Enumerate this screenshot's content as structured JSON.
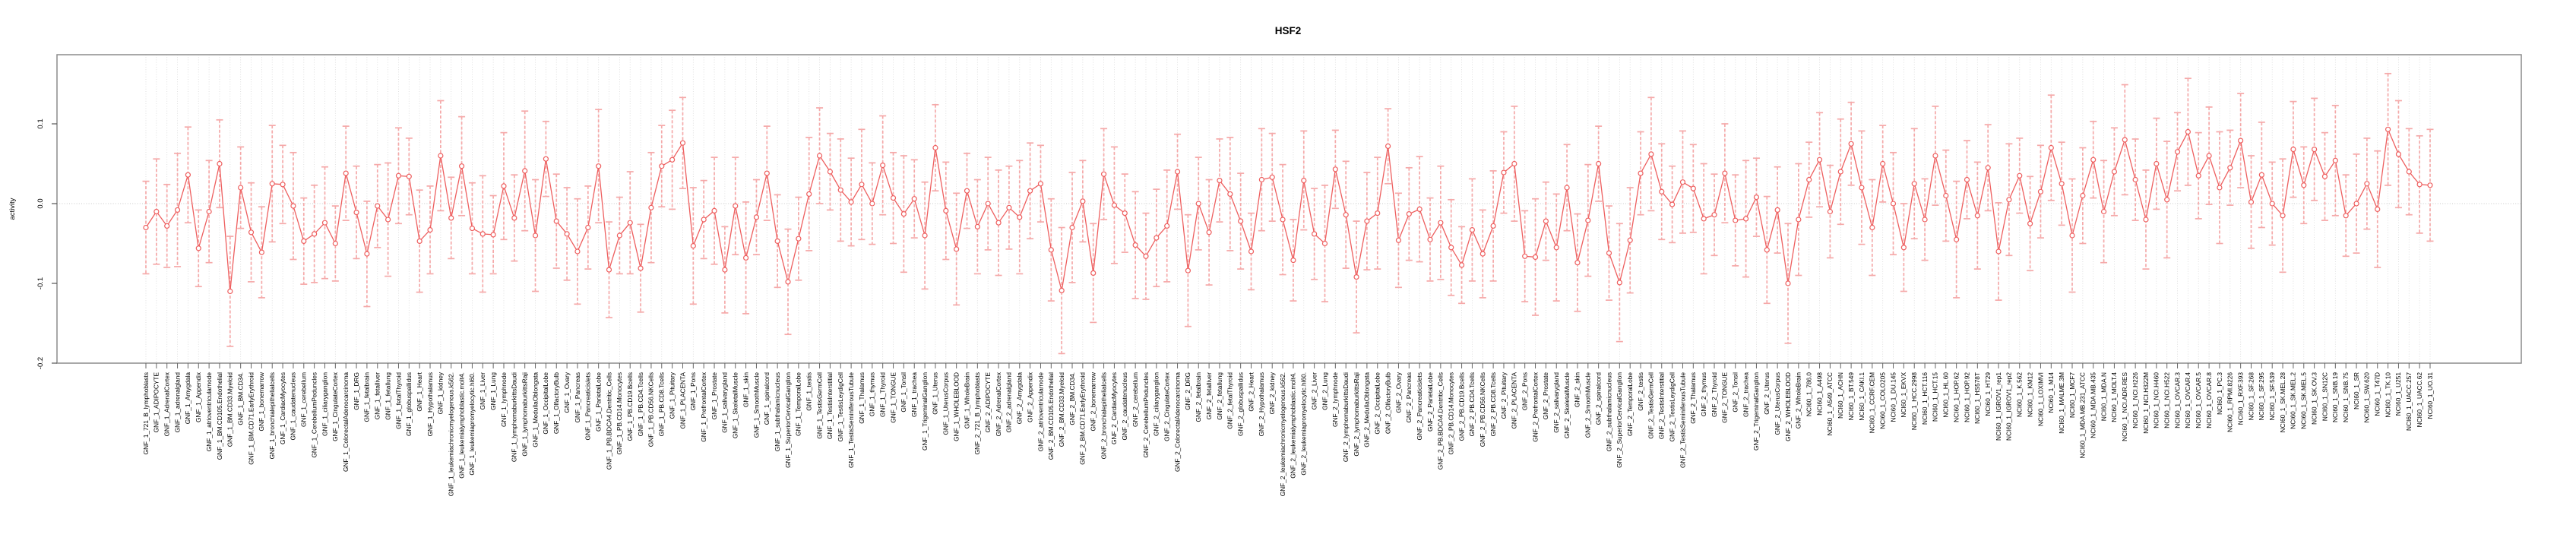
{
  "chart_data": {
    "type": "line",
    "title": "HSF2",
    "xlabel": "",
    "ylabel": "activity",
    "ylim": [
      -0.2,
      0.187
    ],
    "yticks": [
      0.1,
      0.0,
      -0.1,
      -0.2
    ],
    "ytick_labels": [
      "0.1",
      "0.0",
      "-0.1",
      "-0.2"
    ],
    "legend": "none",
    "grid": "dotted vertical gridline per category; dotted horizontal line at y=0",
    "marker": "open-circle",
    "error_bars": true,
    "colors": {
      "line": "#ee5f5f",
      "marker": "#ee5f5f",
      "error_bar": "#f5a9a9",
      "grid": "#d8d8d8",
      "zero_line": "#c8c8c8",
      "box": "#8c8c8c",
      "tick": "#666666",
      "text": "#000000",
      "background": "#ffffff"
    },
    "categories": [
      "GNF_1_721_B_lymphoblasts",
      "GNF_1_ADIPOCYTE",
      "GNF_1_AdrenalCortex",
      "GNF_1_adrenalgland",
      "GNF_1_Amygdala",
      "GNF_1_Appendix",
      "GNF_1_atrioventricularnode",
      "GNF_1_BM.CD105.Endothelial",
      "GNF_1_BM.CD33.Myeloid",
      "GNF_1_BM.CD34.",
      "GNF_1_BM.CD71.EarlyErythroid",
      "GNF_1_bonemarrow",
      "GNF_1_bronchialepithelialcells",
      "GNF_1_CardiacMyocytes",
      "GNF_1_caudatenucleus",
      "GNF_1_cerebellum",
      "GNF_1_CerebellumPeduncles",
      "GNF_1_ciliaryganglion",
      "GNF_1_CingulateCortex",
      "GNF_1_ColorectalAdenocarcinoma",
      "GNF_1_DRG",
      "GNF_1_fetalbrain",
      "GNF_1_fetalliver",
      "GNF_1_fetallung",
      "GNF_1_fetalThyroid",
      "GNF_1_globuspallidus",
      "GNF_1_Heart",
      "GNF_1_Hypothalamus",
      "GNF_1_kidney",
      "GNF_1_leukemiachronicmyelogenous.k562.",
      "GNF_1_leukemialymphoblastic.molt4.",
      "GNF_1_leukemiapromyelocytic.hl60.",
      "GNF_1_Liver",
      "GNF_1_Lung",
      "GNF_1_lymphnode",
      "GNF_1_lymphomaburkittsDaudi",
      "GNF_1_lymphomaburkittsRaji",
      "GNF_1_MedullaOblongata",
      "GNF_1_OccipitalLobe",
      "GNF_1_OlfactoryBulb",
      "GNF_1_Ovary",
      "GNF_1_Pancreas",
      "GNF_1_Pancreaticislets",
      "GNF_1_ParietalLobe",
      "GNF_1_PB.BDCA4.Dentritic_Cells",
      "GNF_1_PB.CD14.Monocytes",
      "GNF_1_PB.CD19.Bcells",
      "GNF_1_PB.CD4.Tcells",
      "GNF_1_PB.CD56.NKCells",
      "GNF_1_PB.CD8.Tcells",
      "GNF_1_Pituitary",
      "GNF_1_PLACENTA",
      "GNF_1_Pons",
      "GNF_1_PrefrontalCortex",
      "GNF_1_Prostate",
      "GNF_1_salivarygland",
      "GNF_1_SkeletalMuscle",
      "GNF_1_skin",
      "GNF_1_SmoothMuscle",
      "GNF_1_spinalcord",
      "GNF_1_subthalamicnucleus",
      "GNF_1_SuperiorCervicalGanglion",
      "GNF_1_TemporalLobe",
      "GNF_1_testis",
      "GNF_1_TestisGermCell",
      "GNF_1_TestisInterstitial",
      "GNF_1_TestisLeydigCell",
      "GNF_1_TestisSeminiferousTubule",
      "GNF_1_Thalamus",
      "GNF_1_thymus",
      "GNF_1_Thyroid",
      "GNF_1_TONGUE",
      "GNF_1_Tonsil",
      "GNF_1_trachea",
      "GNF_1_TrigeminalGanglion",
      "GNF_1_Uterus",
      "GNF_1_UterusCorpus",
      "GNF_1_WHOLEBLOOD",
      "GNF_1_WholeBrain",
      "GNF_2_721_B_lymphoblasts",
      "GNF_2_ADIPOCYTE",
      "GNF_2_AdrenalCortex",
      "GNF_2_adrenalgland",
      "GNF_2_Amygdala",
      "GNF_2_Appendix",
      "GNF_2_atrioventricularnode",
      "GNF_2_BM.CD105.Endothelial",
      "GNF_2_BM.CD33.Myeloid",
      "GNF_2_BM.CD34.",
      "GNF_2_BM.CD71.EarlyErythroid",
      "GNF_2_bonemarrow",
      "GNF_2_bronchialepithelialcells",
      "GNF_2_CardiacMyocytes",
      "GNF_2_caudatenucleus",
      "GNF_2_cerebellum",
      "GNF_2_CerebellumPeduncles",
      "GNF_2_ciliaryganglion",
      "GNF_2_CingulateCortex",
      "GNF_2_ColorectalAdenocarcinoma",
      "GNF_2_DRG",
      "GNF_2_fetalbrain",
      "GNF_2_fetalliver",
      "GNF_2_fetallung",
      "GNF_2_fetalThyroid",
      "GNF_2_globuspallidus",
      "GNF_2_Heart",
      "GNF_2_Hypothalamus",
      "GNF_2_kidney",
      "GNF_2_leukemiachronicmyelogenous.k562.",
      "GNF_2_leukemialymphoblastic.molt4.",
      "GNF_2_leukemiapromyelocytic.hl60.",
      "GNF_2_Liver",
      "GNF_2_Lung",
      "GNF_2_lymphnode",
      "GNF_2_lymphomaburkittsDaudi",
      "GNF_2_lymphomaburkittsRaji",
      "GNF_2_MedullaOblongata",
      "GNF_2_OccipitalLobe",
      "GNF_2_OlfactoryBulb",
      "GNF_2_Ovary",
      "GNF_2_Pancreas",
      "GNF_2_Pancreaticislets",
      "GNF_2_ParietalLobe",
      "GNF_2_PB.BDCA4.Dentritic_Cells",
      "GNF_2_PB.CD14.Monocytes",
      "GNF_2_PB.CD19.Bcells",
      "GNF_2_PB.CD4.Tcells",
      "GNF_2_PB.CD56.NKCells",
      "GNF_2_PB.CD8.Tcells",
      "GNF_2_Pituitary",
      "GNF_2_PLACENTA",
      "GNF_2_Pons",
      "GNF_2_PrefrontalCortex",
      "GNF_2_Prostate",
      "GNF_2_salivarygland",
      "GNF_2_SkeletalMuscle",
      "GNF_2_skin",
      "GNF_2_SmoothMuscle",
      "GNF_2_spinalcord",
      "GNF_2_subthalamicnucleus",
      "GNF_2_SuperiorCervicalGanglion",
      "GNF_2_TemporalLobe",
      "GNF_2_testis",
      "GNF_2_TestisGermCell",
      "GNF_2_TestisInterstitial",
      "GNF_2_TestisLeydigCell",
      "GNF_2_TestisSeminiferousTubule",
      "GNF_2_Thalamus",
      "GNF_2_thymus",
      "GNF_2_Thyroid",
      "GNF_2_TONGUE",
      "GNF_2_Tonsil",
      "GNF_2_trachea",
      "GNF_2_TrigeminalGanglion",
      "GNF_2_Uterus",
      "GNF_2_UterusCorpus",
      "GNF_2_WHOLEBLOOD",
      "GNF_2_WholeBrain",
      "NCI60_1_786.0",
      "NCI60_1_A498",
      "NCI60_1_A549_ATCC",
      "NCI60_1_ACHN",
      "NCI60_1_BT.549",
      "NCI60_1_CAKI.1",
      "NCI60_1_CCRF.CEM",
      "NCI60_1_COLO205",
      "NCI60_1_DU.145",
      "NCI60_1_EKVX",
      "NCI60_1_HCC.2998",
      "NCI60_1_HCT.116",
      "NCI60_1_HCT.15",
      "NCI60_1_HL.60",
      "NCI60_1_HOP.62",
      "NCI60_1_HOP.92",
      "NCI60_1_HS578T",
      "NCI60_1_HT29",
      "NCI60_1_IGROV1_rep1",
      "NCI60_1_IGROV1_rep2",
      "NCI60_1_K.562",
      "NCI60_1_KM12",
      "NCI60_1_LOXIMVI",
      "NCI60_1_M14",
      "NCI60_1_MALME.3M",
      "NCI60_1_MCF7",
      "NCI60_1_MDA.MB.231_ATCC",
      "NCI60_1_MDA.MB.435",
      "NCI60_1_MDA.N",
      "NCI60_1_MOLT.4",
      "NCI60_1_NCI.ADR.RES",
      "NCI60_1_NCI.H226",
      "NCI60_1_NCI.H322M",
      "NCI60_1_NCI.H460",
      "NCI60_1_NCI.H522",
      "NCI60_1_OVCAR.3",
      "NCI60_1_OVCAR.4",
      "NCI60_1_OVCAR.5",
      "NCI60_1_OVCAR.8",
      "NCI60_1_PC.3",
      "NCI60_1_RPMI.8226",
      "NCI60_1_RXF.393",
      "NCI60_1_SF.268",
      "NCI60_1_SF.295",
      "NCI60_1_SF.539",
      "NCI60_1_SK.MEL.28",
      "NCI60_1_SK.MEL.2",
      "NCI60_1_SK.MEL.5",
      "NCI60_1_SK.OV.3",
      "NCI60_1_SN12C",
      "NCI60_1_SNB.19",
      "NCI60_1_SNB.75",
      "NCI60_1_SR",
      "NCI60_1_SW.620",
      "NCI60_1_T47D",
      "NCI60_1_TK.10",
      "NCI60_1_U251",
      "NCI60_1_UACC.257",
      "NCI60_1_UACC.62",
      "NCI60_1_UO.31"
    ],
    "values": [
      -0.03,
      -0.01,
      -0.028,
      -0.008,
      0.036,
      -0.056,
      -0.01,
      0.05,
      -0.11,
      0.02,
      -0.036,
      -0.061,
      0.025,
      0.024,
      -0.003,
      -0.047,
      -0.038,
      -0.024,
      -0.05,
      0.038,
      -0.011,
      -0.063,
      -0.003,
      -0.02,
      0.035,
      0.034,
      -0.047,
      -0.033,
      0.06,
      -0.018,
      0.047,
      -0.031,
      -0.038,
      -0.039,
      0.022,
      -0.018,
      0.041,
      -0.04,
      0.056,
      -0.022,
      -0.038,
      -0.06,
      -0.03,
      0.047,
      -0.083,
      -0.04,
      -0.024,
      -0.081,
      -0.005,
      0.047,
      0.055,
      0.076,
      -0.053,
      -0.02,
      -0.009,
      -0.083,
      -0.003,
      -0.068,
      -0.017,
      0.038,
      -0.047,
      -0.098,
      -0.044,
      0.012,
      0.06,
      0.04,
      0.017,
      0.002,
      0.024,
      0.0,
      0.048,
      0.007,
      -0.013,
      0.006,
      -0.04,
      0.07,
      -0.009,
      -0.057,
      0.016,
      -0.029,
      0.0,
      -0.024,
      -0.005,
      -0.017,
      0.016,
      0.025,
      -0.058,
      -0.109,
      -0.03,
      0.003,
      -0.087,
      0.037,
      -0.002,
      -0.012,
      -0.052,
      -0.066,
      -0.043,
      -0.028,
      0.04,
      -0.084,
      0.0,
      -0.036,
      0.029,
      0.012,
      -0.022,
      -0.06,
      0.03,
      0.033,
      -0.02,
      -0.071,
      0.029,
      -0.038,
      -0.05,
      0.043,
      -0.014,
      -0.092,
      -0.022,
      -0.012,
      0.072,
      -0.046,
      -0.013,
      -0.007,
      -0.045,
      -0.024,
      -0.055,
      -0.077,
      -0.033,
      -0.063,
      -0.028,
      0.039,
      0.05,
      -0.066,
      -0.067,
      -0.022,
      -0.055,
      0.02,
      -0.074,
      -0.021,
      0.05,
      -0.062,
      -0.099,
      -0.046,
      0.038,
      0.062,
      0.015,
      -0.001,
      0.027,
      0.019,
      -0.019,
      -0.014,
      0.038,
      -0.021,
      -0.019,
      0.008,
      -0.058,
      -0.008,
      -0.1,
      -0.02,
      0.03,
      0.055,
      -0.01,
      0.04,
      0.075,
      0.02,
      -0.03,
      0.05,
      0.0,
      -0.055,
      0.025,
      -0.02,
      0.06,
      0.01,
      -0.045,
      0.03,
      -0.015,
      0.045,
      -0.06,
      0.005,
      0.035,
      -0.025,
      0.015,
      0.07,
      0.025,
      -0.04,
      0.01,
      0.055,
      -0.01,
      0.04,
      0.08,
      0.03,
      -0.02,
      0.05,
      0.005,
      0.065,
      0.09,
      0.035,
      0.06,
      0.02,
      0.045,
      0.079,
      0.002,
      0.036,
      0.0,
      -0.015,
      0.068,
      0.023,
      0.068,
      0.034,
      0.054,
      -0.015,
      0.0,
      0.025,
      -0.007,
      0.093,
      0.062,
      0.04,
      0.024,
      0.023
    ],
    "errors": [
      0.058,
      0.066,
      0.052,
      0.071,
      0.06,
      0.048,
      0.064,
      0.055,
      0.069,
      0.051,
      0.062,
      0.057,
      0.073,
      0.049,
      0.067,
      0.054,
      0.061,
      0.07,
      0.047,
      0.059,
      0.058,
      0.066,
      0.052,
      0.071,
      0.06,
      0.048,
      0.064,
      0.055,
      0.069,
      0.051,
      0.062,
      0.057,
      0.073,
      0.049,
      0.067,
      0.054,
      0.075,
      0.07,
      0.047,
      0.059,
      0.058,
      0.066,
      0.052,
      0.071,
      0.06,
      0.048,
      0.064,
      0.055,
      0.069,
      0.051,
      0.062,
      0.057,
      0.073,
      0.049,
      0.067,
      0.054,
      0.061,
      0.07,
      0.047,
      0.059,
      0.058,
      0.066,
      0.052,
      0.071,
      0.06,
      0.048,
      0.064,
      0.055,
      0.069,
      0.051,
      0.062,
      0.057,
      0.073,
      0.049,
      0.067,
      0.054,
      0.061,
      0.07,
      0.047,
      0.059,
      0.058,
      0.066,
      0.052,
      0.071,
      0.06,
      0.048,
      0.064,
      0.079,
      0.069,
      0.051,
      0.062,
      0.057,
      0.073,
      0.049,
      0.067,
      0.054,
      0.061,
      0.07,
      0.047,
      0.07,
      0.058,
      0.066,
      0.052,
      0.071,
      0.06,
      0.048,
      0.064,
      0.055,
      0.069,
      0.051,
      0.062,
      0.057,
      0.073,
      0.049,
      0.067,
      0.07,
      0.061,
      0.07,
      0.047,
      0.059,
      0.058,
      0.066,
      0.052,
      0.071,
      0.06,
      0.048,
      0.064,
      0.055,
      0.069,
      0.051,
      0.072,
      0.057,
      0.073,
      0.049,
      0.067,
      0.054,
      0.061,
      0.07,
      0.047,
      0.059,
      0.074,
      0.066,
      0.052,
      0.071,
      0.06,
      0.048,
      0.064,
      0.055,
      0.069,
      0.051,
      0.062,
      0.057,
      0.073,
      0.049,
      0.067,
      0.054,
      0.075,
      0.07,
      0.047,
      0.059,
      0.058,
      0.066,
      0.052,
      0.071,
      0.06,
      0.048,
      0.064,
      0.055,
      0.069,
      0.051,
      0.062,
      0.057,
      0.073,
      0.049,
      0.067,
      0.054,
      0.061,
      0.07,
      0.047,
      0.059,
      0.058,
      0.066,
      0.052,
      0.071,
      0.06,
      0.048,
      0.064,
      0.055,
      0.069,
      0.051,
      0.062,
      0.057,
      0.073,
      0.049,
      0.067,
      0.054,
      0.061,
      0.07,
      0.047,
      0.059,
      0.058,
      0.066,
      0.052,
      0.071,
      0.06,
      0.048,
      0.064,
      0.055,
      0.069,
      0.051,
      0.062,
      0.057,
      0.073,
      0.07,
      0.067,
      0.054,
      0.061,
      0.07
    ]
  }
}
